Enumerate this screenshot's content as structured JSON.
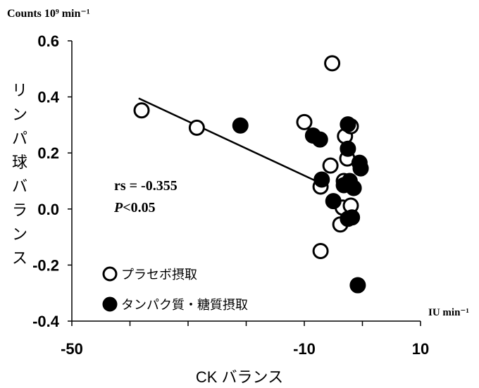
{
  "chart_data": {
    "type": "scatter",
    "title": "",
    "y_unit": "Counts 10⁹ min⁻¹",
    "x_unit": "IU min⁻¹",
    "xlabel": "CK バランス",
    "ylabel": "リンパ球バランス",
    "xlim": [
      -50,
      10
    ],
    "ylim": [
      -0.4,
      0.6
    ],
    "x_ticks": [
      "-50",
      "-10",
      "10"
    ],
    "y_ticks": [
      "0.6",
      "0.4",
      "0.2",
      "0.0",
      "-0.2",
      "-0.4"
    ],
    "annotation": {
      "rs": "rs = -0.355",
      "p_italic": "P",
      "p_rest": "<0.05"
    },
    "trendline": {
      "x": [
        -38.5,
        -8.0
      ],
      "y": [
        0.395,
        0.1
      ]
    },
    "series": [
      {
        "name": "プラセボ摂取",
        "marker": "open-circle",
        "points": [
          {
            "x": -38.0,
            "y": 0.352
          },
          {
            "x": -28.5,
            "y": 0.29
          },
          {
            "x": -10.0,
            "y": 0.31
          },
          {
            "x": -5.2,
            "y": 0.52
          },
          {
            "x": -5.5,
            "y": 0.155
          },
          {
            "x": -7.2,
            "y": 0.08
          },
          {
            "x": -7.2,
            "y": -0.15
          },
          {
            "x": -3.0,
            "y": 0.26
          },
          {
            "x": -2.0,
            "y": 0.295
          },
          {
            "x": -2.6,
            "y": 0.18
          },
          {
            "x": -3.2,
            "y": 0.1
          },
          {
            "x": -3.4,
            "y": 0.005
          },
          {
            "x": -2.0,
            "y": 0.012
          },
          {
            "x": -3.8,
            "y": -0.055
          }
        ]
      },
      {
        "name": "タンパク質・糖質摂取",
        "marker": "filled-circle",
        "points": [
          {
            "x": -21.0,
            "y": 0.298
          },
          {
            "x": -8.5,
            "y": 0.262
          },
          {
            "x": -7.3,
            "y": 0.248
          },
          {
            "x": -7.0,
            "y": 0.105
          },
          {
            "x": -2.5,
            "y": 0.302
          },
          {
            "x": -2.5,
            "y": 0.215
          },
          {
            "x": -0.5,
            "y": 0.165
          },
          {
            "x": -0.3,
            "y": 0.145
          },
          {
            "x": -3.2,
            "y": 0.085
          },
          {
            "x": -2.2,
            "y": 0.1
          },
          {
            "x": -1.5,
            "y": 0.075
          },
          {
            "x": -5.0,
            "y": 0.028
          },
          {
            "x": -2.5,
            "y": -0.035
          },
          {
            "x": -1.8,
            "y": -0.03
          },
          {
            "x": -0.8,
            "y": -0.272
          }
        ]
      }
    ]
  }
}
